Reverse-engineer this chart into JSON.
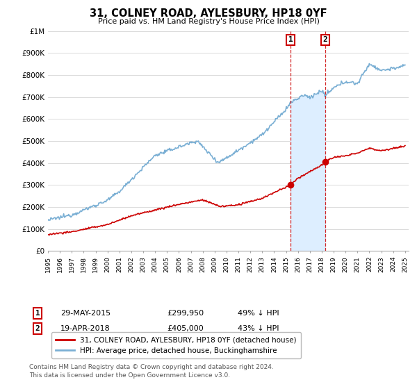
{
  "title": "31, COLNEY ROAD, AYLESBURY, HP18 0YF",
  "subtitle": "Price paid vs. HM Land Registry's House Price Index (HPI)",
  "ylim": [
    0,
    1000000
  ],
  "yticks": [
    0,
    100000,
    200000,
    300000,
    400000,
    500000,
    600000,
    700000,
    800000,
    900000,
    1000000
  ],
  "ytick_labels": [
    "£0",
    "£100K",
    "£200K",
    "£300K",
    "£400K",
    "£500K",
    "£600K",
    "£700K",
    "£800K",
    "£900K",
    "£1M"
  ],
  "sale1_date": 2015.38,
  "sale1_price": 299950,
  "sale2_date": 2018.29,
  "sale2_price": 405000,
  "line_color_red": "#cc0000",
  "line_color_blue": "#7aafd4",
  "shade_color": "#ddeeff",
  "legend_label_red": "31, COLNEY ROAD, AYLESBURY, HP18 0YF (detached house)",
  "legend_label_blue": "HPI: Average price, detached house, Buckinghamshire",
  "annotation1_text": "29-MAY-2015",
  "annotation1_price": "£299,950",
  "annotation1_pct": "49% ↓ HPI",
  "annotation2_text": "19-APR-2018",
  "annotation2_price": "£405,000",
  "annotation2_pct": "43% ↓ HPI",
  "footer": "Contains HM Land Registry data © Crown copyright and database right 2024.\nThis data is licensed under the Open Government Licence v3.0.",
  "xstart": 1995,
  "xend": 2025
}
